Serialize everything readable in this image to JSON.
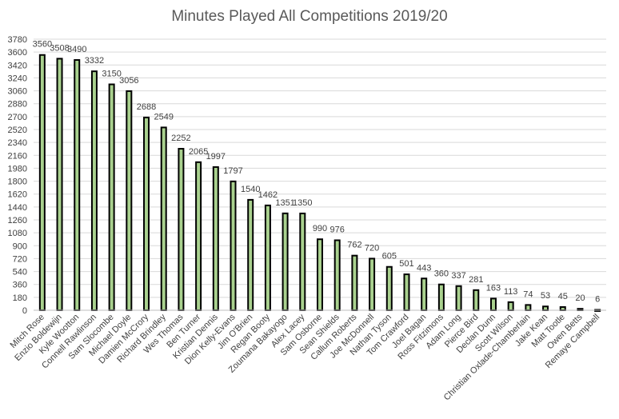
{
  "chart_data": {
    "type": "bar",
    "title": "Minutes Played All Competitions 2019/20",
    "xlabel": "",
    "ylabel": "",
    "ylim": [
      0,
      3780
    ],
    "yticks": [
      0,
      180,
      360,
      540,
      720,
      900,
      1080,
      1260,
      1440,
      1620,
      1800,
      1980,
      2160,
      2340,
      2520,
      2700,
      2880,
      3060,
      3240,
      3420,
      3600,
      3780
    ],
    "grid": true,
    "legend": "none",
    "categories": [
      "Mitch Rose",
      "Enzio Boldewijn",
      "Kyle Wootton",
      "Connell Rawlinson",
      "Sam Slocombe",
      "Michael Doyle",
      "Damien McCrory",
      "Richard Brindley",
      "Wes Thomas",
      "Ben Turner",
      "Kristian Dennis",
      "Dion Kelly-Evans",
      "Jim O'Brien",
      "Regan Booty",
      "Zoumana Bakayogo",
      "Alex Lacey",
      "Sam Osborne",
      "Sean Shields",
      "Callum Roberts",
      "Joe McDonnell",
      "Nathan Tyson",
      "Tom Crawford",
      "Joel Bagan",
      "Ross Fitzimons",
      "Adam Long",
      "Pierce Bird",
      "Declan Dunn",
      "Scott Wilson",
      "Christian Oxlade-Chamberlain",
      "Jake Kean",
      "Matt Tootle",
      "Owen Betts",
      "Remaye Campbell"
    ],
    "values": [
      3560,
      3508,
      3490,
      3332,
      3150,
      3056,
      2688,
      2549,
      2252,
      2065,
      1997,
      1797,
      1540,
      1462,
      1351,
      1350,
      990,
      976,
      762,
      720,
      605,
      501,
      443,
      360,
      337,
      281,
      163,
      113,
      74,
      53,
      45,
      20,
      6
    ],
    "colors": {
      "bar_fill": "#a9d18e",
      "bar_stroke": "#000000",
      "grid": "#d9d9d9",
      "text": "#404040",
      "title": "#595959"
    }
  }
}
